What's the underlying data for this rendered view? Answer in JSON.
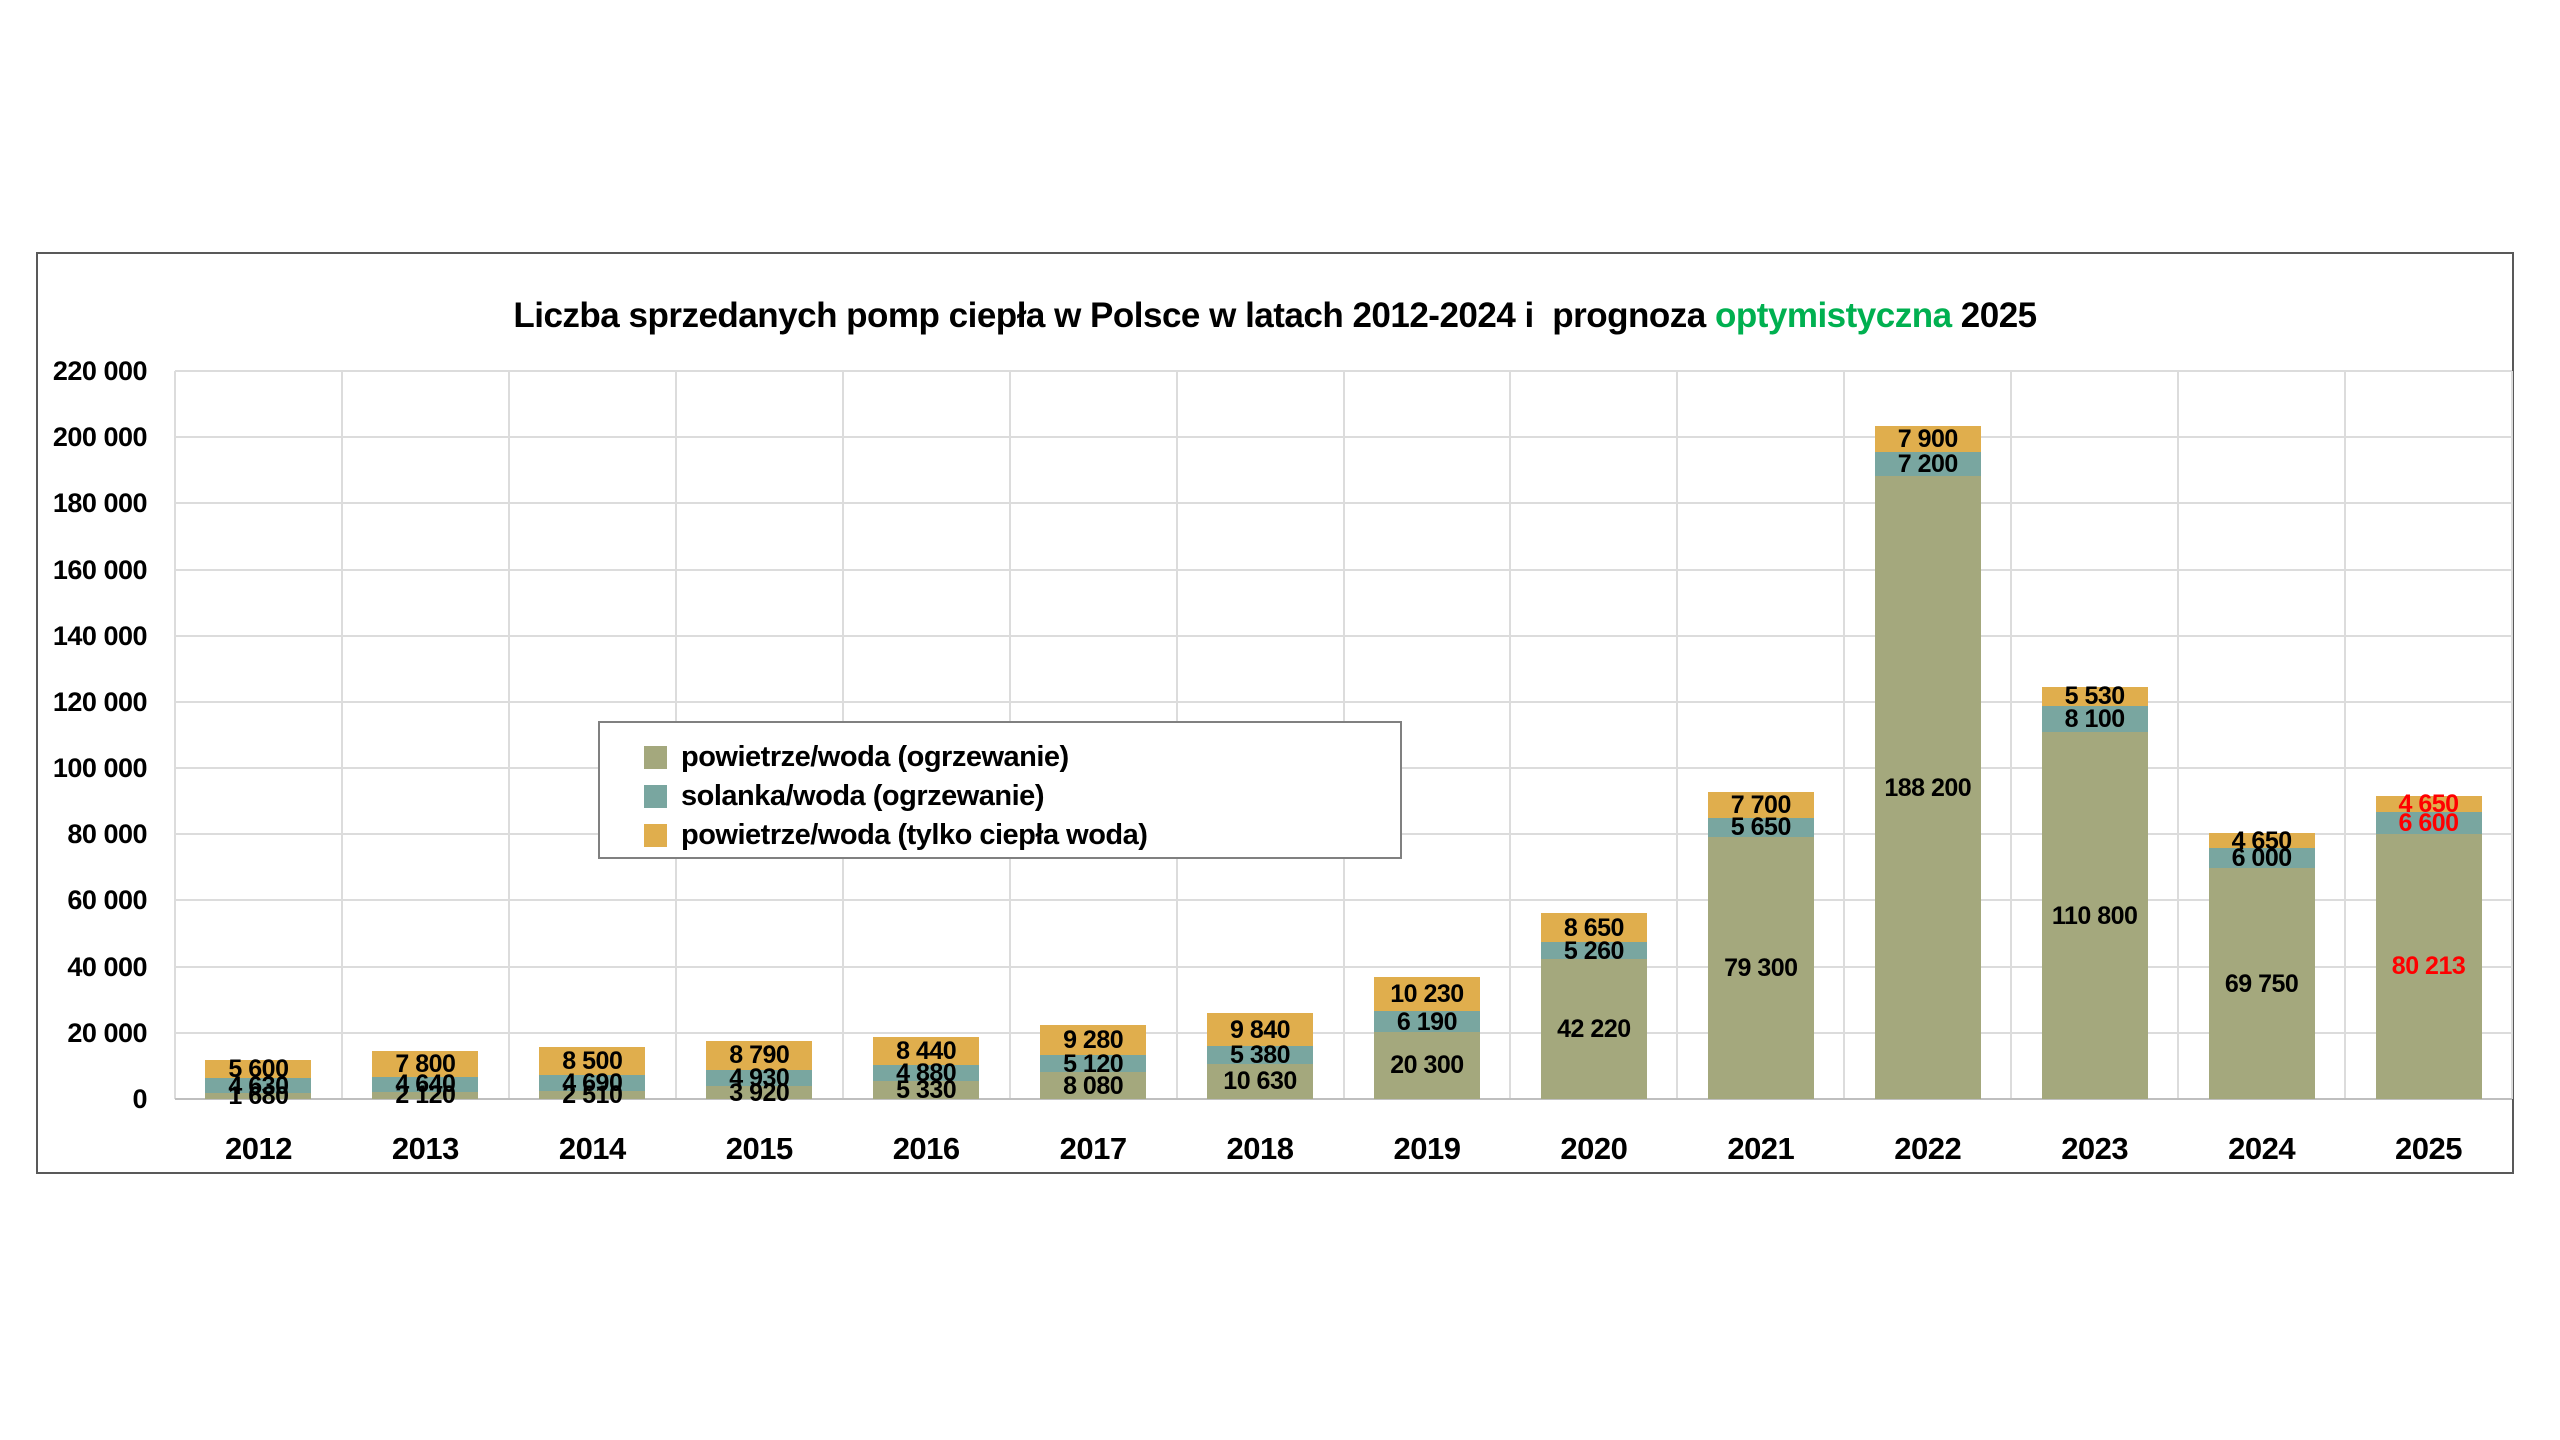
{
  "title": {
    "prefix": "Liczba sprzedanych pomp ciepła w Polsce w latach 2012-2024 i  prognoza ",
    "highlight": "optymistyczna",
    "suffix": " 2025",
    "highlight_color": "#00B050"
  },
  "chart_data": {
    "type": "bar",
    "stacked": true,
    "categories": [
      "2012",
      "2013",
      "2014",
      "2015",
      "2016",
      "2017",
      "2018",
      "2019",
      "2020",
      "2021",
      "2022",
      "2023",
      "2024",
      "2025"
    ],
    "series": [
      {
        "name": "powietrze/woda (ogrzewanie)",
        "color": "#A4A87D",
        "values": [
          1680,
          2120,
          2510,
          3920,
          5330,
          8080,
          10630,
          20300,
          42220,
          79300,
          188200,
          110800,
          69750,
          80213
        ]
      },
      {
        "name": "solanka/woda (ogrzewanie)",
        "color": "#79A6A0",
        "values": [
          4630,
          4640,
          4690,
          4930,
          4880,
          5120,
          5380,
          6190,
          5260,
          5650,
          7200,
          8100,
          6000,
          6600
        ]
      },
      {
        "name": "powietrze/woda (tylko ciepła woda)",
        "color": "#E0AE4D",
        "values": [
          5600,
          7800,
          8500,
          8790,
          8440,
          9280,
          9840,
          10230,
          8650,
          7700,
          7900,
          5530,
          4650,
          4650
        ]
      }
    ],
    "ylim": [
      0,
      220000
    ],
    "ytick_step": 20000,
    "ytick_labels": [
      "0",
      "20 000",
      "40 000",
      "60 000",
      "80 000",
      "100 000",
      "120 000",
      "140 000",
      "160 000",
      "180 000",
      "200 000",
      "220 000"
    ],
    "grid": true,
    "legend_position": "inside-left",
    "value_labels": true,
    "value_label_color": "#000000",
    "forecast_category": "2025",
    "forecast_label_color": "#FF0000"
  }
}
